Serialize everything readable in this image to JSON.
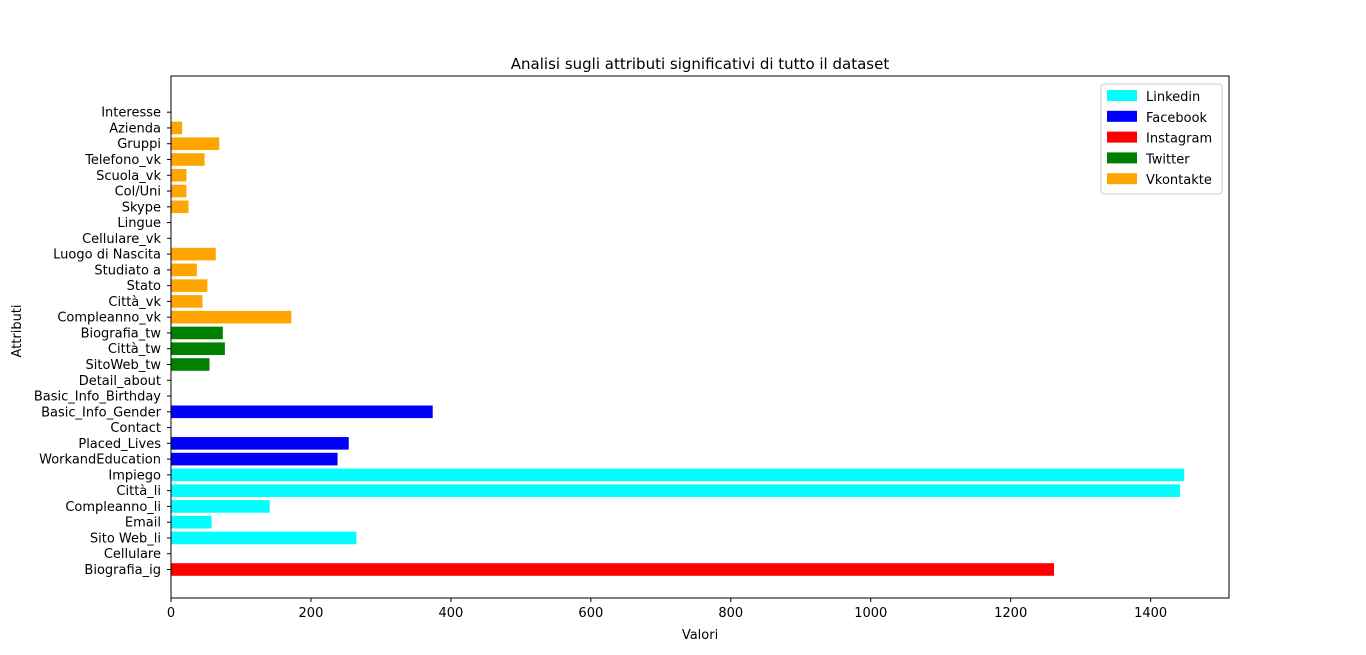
{
  "chart_data": {
    "type": "bar",
    "orientation": "horizontal",
    "title": "Analisi sugli attributi significativi di tutto il dataset",
    "xlabel": "Valori",
    "ylabel": "Attributi",
    "xlim": [
      0,
      1512
    ],
    "xticks": [
      "0",
      "200",
      "400",
      "600",
      "800",
      "1000",
      "1200",
      "1400"
    ],
    "xtick_values": [
      0,
      200,
      400,
      600,
      800,
      1000,
      1200,
      1400
    ],
    "grid": false,
    "legend_position": "top-right",
    "legend": [
      {
        "name": "Linkedin",
        "color": "#00ffff"
      },
      {
        "name": "Facebook",
        "color": "#0000ff"
      },
      {
        "name": "Instagram",
        "color": "#ff0000"
      },
      {
        "name": "Twitter",
        "color": "#008000"
      },
      {
        "name": "Vkontakte",
        "color": "#ffa500"
      }
    ],
    "bars": [
      {
        "category": "Biografia_ig",
        "value": 1262,
        "series": "Instagram"
      },
      {
        "category": "Cellulare",
        "value": 0,
        "series": "Linkedin"
      },
      {
        "category": "Sito Web_li",
        "value": 265,
        "series": "Linkedin"
      },
      {
        "category": "Email",
        "value": 58,
        "series": "Linkedin"
      },
      {
        "category": "Compleanno_li",
        "value": 141,
        "series": "Linkedin"
      },
      {
        "category": "Città_li",
        "value": 1442,
        "series": "Linkedin"
      },
      {
        "category": "Impiego",
        "value": 1448,
        "series": "Linkedin"
      },
      {
        "category": "WorkandEducation",
        "value": 238,
        "series": "Facebook"
      },
      {
        "category": "Placed_Lives",
        "value": 254,
        "series": "Facebook"
      },
      {
        "category": "Contact",
        "value": 0,
        "series": "Facebook"
      },
      {
        "category": "Basic_Info_Gender",
        "value": 374,
        "series": "Facebook"
      },
      {
        "category": "Basic_Info_Birthday",
        "value": 0,
        "series": "Facebook"
      },
      {
        "category": "Detail_about",
        "value": 0,
        "series": "Facebook"
      },
      {
        "category": "SitoWeb_tw",
        "value": 55,
        "series": "Twitter"
      },
      {
        "category": "Città_tw",
        "value": 77,
        "series": "Twitter"
      },
      {
        "category": "Biografia_tw",
        "value": 74,
        "series": "Twitter"
      },
      {
        "category": "Compleanno_vk",
        "value": 172,
        "series": "Vkontakte"
      },
      {
        "category": "Città_vk",
        "value": 45,
        "series": "Vkontakte"
      },
      {
        "category": "Stato",
        "value": 52,
        "series": "Vkontakte"
      },
      {
        "category": "Studiato a",
        "value": 37,
        "series": "Vkontakte"
      },
      {
        "category": "Luogo di Nascita",
        "value": 64,
        "series": "Vkontakte"
      },
      {
        "category": "Cellulare_vk",
        "value": 0,
        "series": "Vkontakte"
      },
      {
        "category": "Lingue",
        "value": 0,
        "series": "Vkontakte"
      },
      {
        "category": "Skype",
        "value": 25,
        "series": "Vkontakte"
      },
      {
        "category": "Col/Uni",
        "value": 22,
        "series": "Vkontakte"
      },
      {
        "category": "Scuola_vk",
        "value": 22,
        "series": "Vkontakte"
      },
      {
        "category": "Telefono_vk",
        "value": 48,
        "series": "Vkontakte"
      },
      {
        "category": "Gruppi",
        "value": 69,
        "series": "Vkontakte"
      },
      {
        "category": "Azienda",
        "value": 16,
        "series": "Vkontakte"
      },
      {
        "category": "Interesse",
        "value": 0,
        "series": "Vkontakte"
      }
    ]
  }
}
